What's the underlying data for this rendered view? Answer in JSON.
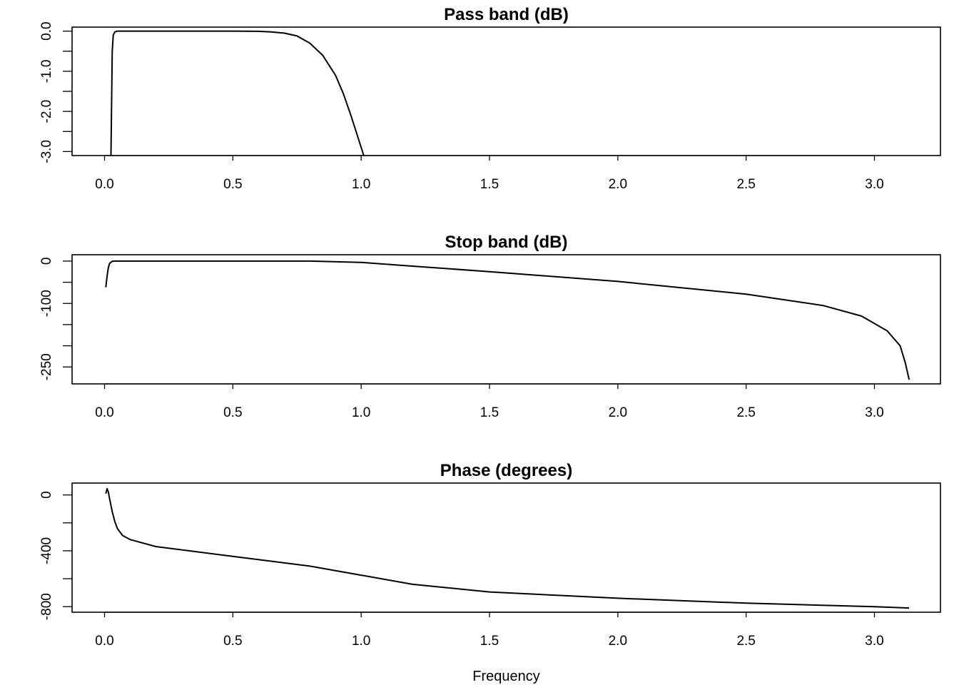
{
  "chart_data": [
    {
      "type": "line",
      "title": "Pass band (dB)",
      "xlim": [
        0,
        3.14
      ],
      "ylim": [
        -3.1,
        0.1
      ],
      "xticks": [
        0,
        0.5,
        1,
        1.5,
        2,
        2.5,
        3
      ],
      "xtick_labels": [
        "0.0",
        "0.5",
        "1.0",
        "1.5",
        "2.0",
        "2.5",
        "3.0"
      ],
      "yticks": [
        0,
        -0.5,
        -1,
        -1.5,
        -2,
        -2.5,
        -3
      ],
      "ytick_labels": [
        "0.0",
        "",
        "-1.0",
        "",
        "-2.0",
        "",
        "-3.0"
      ],
      "series": [
        {
          "x": [
            0.025,
            0.028,
            0.03,
            0.034,
            0.04,
            0.05,
            0.1,
            0.3,
            0.5,
            0.6,
            0.65,
            0.7,
            0.75,
            0.8,
            0.85,
            0.9,
            0.93,
            0.96,
            0.99,
            1.01
          ],
          "y": [
            -3.1,
            -1.5,
            -0.5,
            -0.1,
            -0.02,
            0,
            0,
            0,
            0,
            -0.005,
            -0.02,
            -0.05,
            -0.12,
            -0.3,
            -0.6,
            -1.1,
            -1.55,
            -2.1,
            -2.7,
            -3.1
          ]
        }
      ]
    },
    {
      "type": "line",
      "title": "Stop band (dB)",
      "xlim": [
        0,
        3.14
      ],
      "ylim": [
        -290,
        15
      ],
      "xticks": [
        0,
        0.5,
        1,
        1.5,
        2,
        2.5,
        3
      ],
      "xtick_labels": [
        "0.0",
        "0.5",
        "1.0",
        "1.5",
        "2.0",
        "2.5",
        "3.0"
      ],
      "yticks": [
        0,
        -50,
        -100,
        -150,
        -200,
        -250
      ],
      "ytick_labels": [
        "0",
        "",
        "-100",
        "",
        "",
        "-250"
      ],
      "series": [
        {
          "x": [
            0.005,
            0.01,
            0.015,
            0.02,
            0.03,
            0.04,
            0.5,
            0.8,
            1.0,
            1.2,
            1.5,
            2.0,
            2.5,
            2.8,
            2.95,
            3.05,
            3.1,
            3.12,
            3.135
          ],
          "y": [
            -62,
            -35,
            -15,
            -5,
            -0.5,
            0,
            0,
            0,
            -3,
            -12,
            -25,
            -48,
            -78,
            -105,
            -130,
            -165,
            -200,
            -240,
            -280
          ]
        }
      ]
    },
    {
      "type": "line",
      "title": "Phase (degrees)",
      "xlabel": "Frequency",
      "xlim": [
        0,
        3.14
      ],
      "ylim": [
        -840,
        85
      ],
      "xticks": [
        0,
        0.5,
        1,
        1.5,
        2,
        2.5,
        3
      ],
      "xtick_labels": [
        "0.0",
        "0.5",
        "1.0",
        "1.5",
        "2.0",
        "2.5",
        "3.0"
      ],
      "yticks": [
        0,
        -200,
        -400,
        -600,
        -800
      ],
      "ytick_labels": [
        "0",
        "",
        "-400",
        "",
        "-800"
      ],
      "series": [
        {
          "x": [
            0.005,
            0.01,
            0.015,
            0.02,
            0.03,
            0.04,
            0.05,
            0.07,
            0.1,
            0.2,
            0.5,
            0.8,
            1.0,
            1.2,
            1.5,
            2.0,
            2.5,
            3.0,
            3.135
          ],
          "y": [
            10,
            45,
            20,
            -30,
            -120,
            -190,
            -240,
            -290,
            -320,
            -370,
            -440,
            -510,
            -575,
            -640,
            -695,
            -740,
            -775,
            -800,
            -810
          ]
        }
      ]
    }
  ]
}
